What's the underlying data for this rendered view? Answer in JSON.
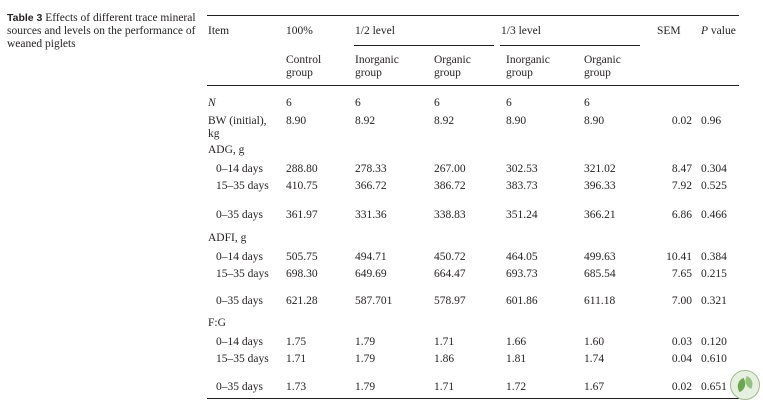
{
  "caption": {
    "label": "Table 3",
    "text": "Effects of different trace mineral sources and levels on the performance of weaned piglets"
  },
  "header": {
    "item": "Item",
    "full": "100%",
    "half": "1/2 level",
    "third": "1/3 level",
    "sem": "SEM",
    "p_italic": "P",
    "p_rest": " value",
    "sub": [
      "Control group",
      "Inorganic group",
      "Organic group",
      "Inorganic group",
      "Organic group"
    ]
  },
  "rows": [
    {
      "item": "N",
      "italic": true,
      "vals": [
        "6",
        "6",
        "6",
        "6",
        "6"
      ],
      "sem": "",
      "p": ""
    },
    {
      "item": "BW (initial), kg",
      "vals": [
        "8.90",
        "8.92",
        "8.92",
        "8.90",
        "8.90"
      ],
      "sem": "0.02",
      "p": "0.96"
    },
    {
      "item": "ADG, g",
      "vals": [
        "",
        "",
        "",
        "",
        ""
      ],
      "sem": "",
      "p": ""
    },
    {
      "item": "0–14 days",
      "indent": true,
      "vals": [
        "288.80",
        "278.33",
        "267.00",
        "302.53",
        "321.02"
      ],
      "sem": "8.47",
      "p": "0.304"
    },
    {
      "item": "15–35 days",
      "indent": true,
      "vals": [
        "410.75",
        "366.72",
        "386.72",
        "383.73",
        "396.33"
      ],
      "sem": "7.92",
      "p": "0.525"
    },
    {
      "item": "0–35 days",
      "indent": true,
      "vals": [
        "361.97",
        "331.36",
        "338.83",
        "351.24",
        "366.21"
      ],
      "sem": "6.86",
      "p": "0.466"
    },
    {
      "item": "ADFI, g",
      "vals": [
        "",
        "",
        "",
        "",
        ""
      ],
      "sem": "",
      "p": ""
    },
    {
      "item": "0–14 days",
      "indent": true,
      "vals": [
        "505.75",
        "494.71",
        "450.72",
        "464.05",
        "499.63"
      ],
      "sem": "10.41",
      "p": "0.384"
    },
    {
      "item": "15–35 days",
      "indent": true,
      "vals": [
        "698.30",
        "649.69",
        "664.47",
        "693.73",
        "685.54"
      ],
      "sem": "7.65",
      "p": "0.215"
    },
    {
      "item": "0–35 days",
      "indent": true,
      "vals": [
        "621.28",
        "587.701",
        "578.97",
        "601.86",
        "611.18"
      ],
      "sem": "7.00",
      "p": "0.321"
    },
    {
      "item": "F:G",
      "vals": [
        "",
        "",
        "",
        "",
        ""
      ],
      "sem": "",
      "p": ""
    },
    {
      "item": "0–14 days",
      "indent": true,
      "vals": [
        "1.75",
        "1.79",
        "1.71",
        "1.66",
        "1.60"
      ],
      "sem": "0.03",
      "p": "0.120"
    },
    {
      "item": "15–35 days",
      "indent": true,
      "vals": [
        "1.71",
        "1.79",
        "1.86",
        "1.81",
        "1.74"
      ],
      "sem": "0.04",
      "p": "0.610"
    },
    {
      "item": "0–35 days",
      "indent": true,
      "vals": [
        "1.73",
        "1.79",
        "1.71",
        "1.72",
        "1.67"
      ],
      "sem": "0.02",
      "p": "0.651"
    }
  ]
}
